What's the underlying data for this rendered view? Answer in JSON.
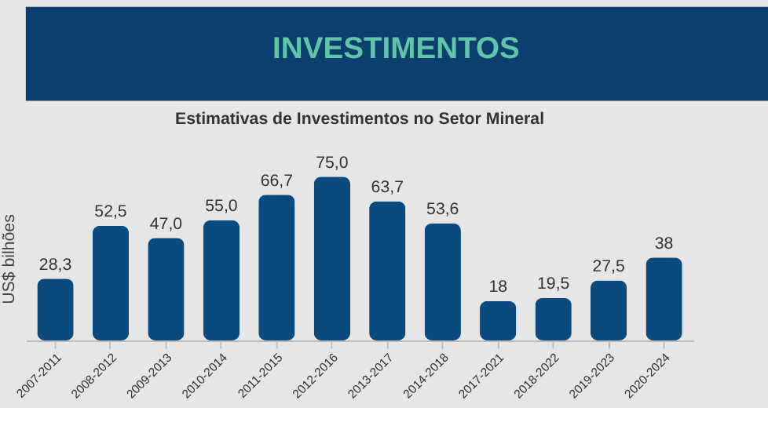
{
  "chart_data": {
    "type": "bar",
    "title": "INVESTIMENTOS",
    "subtitle": "Estimativas de Investimentos no Setor Mineral",
    "ylabel": "US$ bilhões",
    "categories": [
      "2007-2011",
      "2008-2012",
      "2009-2013",
      "2010-2014",
      "2011-2015",
      "2012-2016",
      "2013-2017",
      "2014-2018",
      "2017-2021",
      "2018-2022",
      "2019-2023",
      "2020-2024"
    ],
    "values": [
      28.3,
      52.5,
      47.0,
      55.0,
      66.7,
      75.0,
      63.7,
      53.6,
      18,
      19.5,
      27.5,
      38
    ],
    "value_labels": [
      "28,3",
      "52,5",
      "47,0",
      "55,0",
      "66,7",
      "75,0",
      "63,7",
      "53,6",
      "18",
      "19,5",
      "27,5",
      "38"
    ],
    "color": "#0b4a7f"
  }
}
